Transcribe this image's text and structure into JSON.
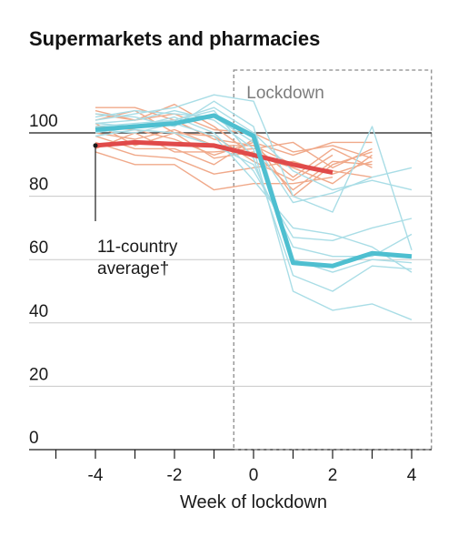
{
  "chart_data": {
    "type": "line",
    "title": "Supermarkets and pharmacies",
    "xlabel": "Week of lockdown",
    "ylabel": "",
    "x_ticks": [
      -4,
      -2,
      0,
      2,
      4
    ],
    "y_ticks": [
      0,
      20,
      40,
      60,
      80,
      100
    ],
    "xlim": [
      -5.5,
      4.5
    ],
    "ylim": [
      0,
      110
    ],
    "reference_line": 100,
    "shaded_region": {
      "label": "Lockdown",
      "x_start": -0.5,
      "x_end": 4.5
    },
    "annotation": {
      "lines": [
        "11-country",
        "average†"
      ],
      "x": -4,
      "y": 96
    },
    "highlight_series": [
      {
        "color": "#e04a4a",
        "width": 5,
        "x": [
          -4,
          -3,
          -2,
          -1,
          0,
          1,
          2
        ],
        "values": [
          96,
          97,
          96.5,
          96,
          93,
          90,
          87.5
        ]
      },
      {
        "color": "#4ebfd0",
        "width": 5,
        "x": [
          -4,
          -3,
          -2,
          -1,
          0,
          1,
          2,
          3,
          4
        ],
        "values": [
          101,
          102,
          103,
          105.5,
          99,
          59,
          58,
          62,
          61
        ]
      }
    ],
    "background_series_orange": [
      {
        "color": "#f0a98a",
        "x": [
          -4,
          -3,
          -2,
          -1,
          0,
          1,
          2,
          3
        ],
        "values": [
          108,
          108,
          104,
          98,
          96,
          90,
          88,
          86
        ]
      },
      {
        "color": "#f0a98a",
        "x": [
          -4,
          -3,
          -2,
          -1,
          0,
          1,
          2,
          3
        ],
        "values": [
          106,
          104,
          109,
          102,
          93,
          89,
          84,
          93
        ]
      },
      {
        "color": "#f0a98a",
        "x": [
          -4,
          -3,
          -2,
          -1,
          0,
          1,
          2,
          3
        ],
        "values": [
          104,
          107,
          100,
          92,
          94,
          82,
          91,
          90
        ]
      },
      {
        "color": "#f0a98a",
        "x": [
          -4,
          -3,
          -2,
          -1,
          0,
          1,
          2,
          3
        ],
        "values": [
          100,
          98,
          101,
          96,
          96,
          86,
          95,
          89
        ]
      },
      {
        "color": "#f0a98a",
        "x": [
          -4,
          -3,
          -2,
          -1,
          0,
          1,
          2,
          3
        ],
        "values": [
          99,
          95,
          95,
          90,
          98,
          80,
          90,
          94
        ]
      },
      {
        "color": "#f0a98a",
        "x": [
          -4,
          -3,
          -2,
          -1,
          0,
          1,
          2,
          3
        ],
        "values": [
          97,
          93,
          92,
          87,
          89,
          91,
          87,
          91
        ]
      },
      {
        "color": "#f0a98a",
        "x": [
          -4,
          -3,
          -2,
          -1,
          0,
          1,
          2,
          3
        ],
        "values": [
          95,
          100,
          94,
          94,
          95,
          97,
          89,
          95
        ]
      },
      {
        "color": "#f0a98a",
        "x": [
          -4,
          -3,
          -2,
          -1,
          0,
          1,
          2
        ],
        "values": [
          94,
          90,
          90,
          82,
          84,
          84,
          86
        ]
      },
      {
        "color": "#f0a98a",
        "x": [
          -4,
          -3,
          -2,
          -1,
          0,
          1,
          2,
          3
        ],
        "values": [
          102,
          101,
          98,
          93,
          97,
          93,
          97,
          97
        ]
      },
      {
        "color": "#f0a98a",
        "x": [
          -4,
          -3,
          -2,
          -1,
          0,
          1,
          2
        ],
        "values": [
          103,
          96,
          100,
          99,
          91,
          85,
          93
        ]
      },
      {
        "color": "#f0a98a",
        "x": [
          -4,
          -3,
          -2,
          -1,
          0,
          1,
          2,
          3
        ],
        "values": [
          107,
          104,
          106,
          101,
          100,
          94,
          96,
          92
        ]
      }
    ],
    "background_series_blue": [
      {
        "color": "#a9dde6",
        "x": [
          -4,
          -3,
          -2,
          -1,
          0,
          1,
          2,
          3,
          4
        ],
        "values": [
          106,
          105,
          102,
          110,
          102,
          60,
          56,
          60,
          59
        ]
      },
      {
        "color": "#a9dde6",
        "x": [
          -4,
          -3,
          -2,
          -1,
          0,
          1,
          2,
          3,
          4
        ],
        "values": [
          103,
          104,
          107,
          104,
          95,
          50,
          44,
          46,
          41
        ]
      },
      {
        "color": "#a9dde6",
        "x": [
          -4,
          -3,
          -2,
          -1,
          0,
          1,
          2,
          3,
          4
        ],
        "values": [
          100,
          102,
          105,
          100,
          88,
          67,
          66,
          70,
          73
        ]
      },
      {
        "color": "#a9dde6",
        "x": [
          -4,
          -3,
          -2,
          -1,
          0,
          1,
          2,
          3,
          4
        ],
        "values": [
          102,
          103,
          104,
          107,
          92,
          55,
          50,
          58,
          57
        ]
      },
      {
        "color": "#a9dde6",
        "x": [
          -4,
          -3,
          -2,
          -1,
          0,
          1,
          2,
          3,
          4
        ],
        "values": [
          104,
          106,
          108,
          112,
          110,
          80,
          75,
          102,
          63
        ]
      },
      {
        "color": "#a9dde6",
        "x": [
          -4,
          -3,
          -2,
          -1,
          0,
          1,
          2,
          3,
          4
        ],
        "values": [
          101,
          100,
          103,
          99,
          85,
          70,
          68,
          64,
          56
        ]
      },
      {
        "color": "#a9dde6",
        "x": [
          -4,
          -3,
          -2,
          -1,
          0,
          1,
          2,
          3,
          4
        ],
        "values": [
          105,
          107,
          106,
          105,
          97,
          78,
          81,
          86,
          89
        ]
      },
      {
        "color": "#a9dde6",
        "x": [
          -4,
          -3,
          -2,
          -1,
          0,
          1,
          2,
          3,
          4
        ],
        "values": [
          99,
          101,
          100,
          96,
          90,
          64,
          61,
          61,
          68
        ]
      },
      {
        "color": "#a9dde6",
        "x": [
          -4,
          -3,
          -2,
          -1,
          0,
          1,
          2,
          3,
          4
        ],
        "values": [
          103,
          102,
          104,
          108,
          100,
          88,
          82,
          85,
          82
        ]
      }
    ]
  }
}
